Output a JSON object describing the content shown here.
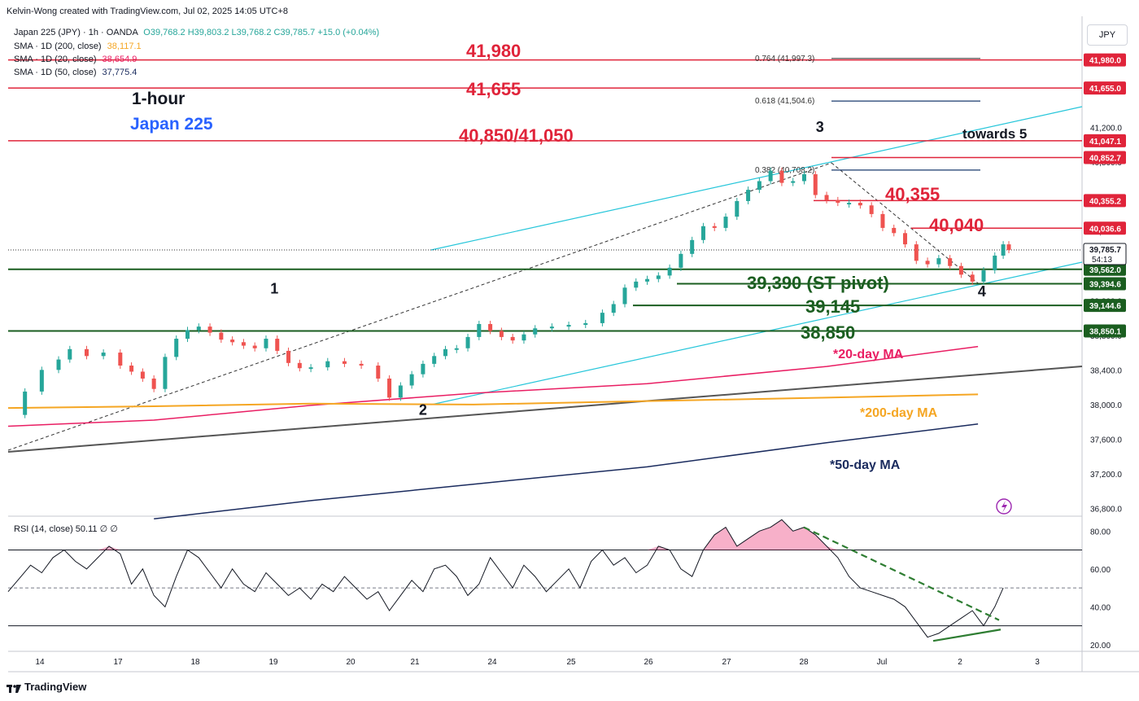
{
  "header": {
    "credit": "Kelvin-Wong created with TradingView.com, Jul 02, 2025 14:05 UTC+8",
    "symbol": "Japan 225 (JPY) · 1h · OANDA",
    "ohlc": "O39,768.2  H39,803.2  L39,768.2  C39,785.7  +15.0 (+0.04%)",
    "indicators": [
      {
        "label": "SMA · 1D (200, close)",
        "value": "38,117.1",
        "color": "#f5a623"
      },
      {
        "label": "SMA · 1D (20, close)",
        "value": "38,654.9",
        "color": "#e91e63"
      },
      {
        "label": "SMA · 1D (50, close)",
        "value": "37,775.4",
        "color": "#1a2b5e"
      }
    ],
    "currency": "JPY"
  },
  "branding": "TradingView",
  "rsi_legend": "RSI (14, close)  50.11  ∅  ∅",
  "colors": {
    "red": "#e0243a",
    "green_zone": "#1b5e20",
    "teal": "#26c6da",
    "ma20": "#e91e63",
    "ma200": "#f5a623",
    "ma50": "#1a2b5e",
    "trend": "#555555",
    "up": "#26a69a",
    "down": "#ef5350"
  },
  "chart_data": [
    {
      "type": "line",
      "title": "1-hour Japan 225",
      "title_line1": "1-hour",
      "title_line2": "Japan 225",
      "x_ticks": [
        "14",
        "17",
        "18",
        "19",
        "20",
        "21",
        "24",
        "25",
        "26",
        "27",
        "28",
        "Jul",
        "2",
        "3"
      ],
      "y_ticks": [
        "41,200.0",
        "40,800.0",
        "40,400.0",
        "40,000.0",
        "39,600.0",
        "39,200.0",
        "38,800.0",
        "38,400.0",
        "38,000.0",
        "37,600.0",
        "37,200.0",
        "36,800.0"
      ],
      "y_tick_values": [
        41200,
        40800,
        40400,
        40000,
        39600,
        39200,
        38800,
        38400,
        38000,
        37600,
        37200,
        36800
      ],
      "ylim": [
        36720,
        42390
      ],
      "price_path": [
        [
          13.9,
          37880
        ],
        [
          14.2,
          38150
        ],
        [
          14.5,
          38400
        ],
        [
          14.8,
          38520
        ],
        [
          15.0,
          38640
        ],
        [
          15.3,
          38560
        ],
        [
          15.6,
          38600
        ],
        [
          15.9,
          38450
        ],
        [
          16.1,
          38380
        ],
        [
          16.3,
          38300
        ],
        [
          16.5,
          38180
        ],
        [
          16.7,
          38550
        ],
        [
          16.9,
          38760
        ],
        [
          17.1,
          38860
        ],
        [
          17.3,
          38900
        ],
        [
          17.5,
          38830
        ],
        [
          17.7,
          38750
        ],
        [
          17.9,
          38720
        ],
        [
          18.1,
          38680
        ],
        [
          18.3,
          38650
        ],
        [
          18.5,
          38760
        ],
        [
          18.7,
          38620
        ],
        [
          18.9,
          38480
        ],
        [
          19.1,
          38420
        ],
        [
          19.3,
          38430
        ],
        [
          19.6,
          38500
        ],
        [
          19.9,
          38470
        ],
        [
          20.2,
          38450
        ],
        [
          20.5,
          38300
        ],
        [
          20.7,
          38080
        ],
        [
          20.9,
          38220
        ],
        [
          21.1,
          38350
        ],
        [
          21.3,
          38470
        ],
        [
          21.5,
          38560
        ],
        [
          21.7,
          38640
        ],
        [
          21.9,
          38650
        ],
        [
          22.1,
          38780
        ],
        [
          22.3,
          38930
        ],
        [
          22.5,
          38850
        ],
        [
          22.7,
          38780
        ],
        [
          22.9,
          38740
        ],
        [
          23.1,
          38810
        ],
        [
          23.3,
          38880
        ],
        [
          23.6,
          38900
        ],
        [
          23.9,
          38920
        ],
        [
          24.2,
          38940
        ],
        [
          24.5,
          39060
        ],
        [
          24.7,
          39160
        ],
        [
          24.9,
          39350
        ],
        [
          25.1,
          39420
        ],
        [
          25.3,
          39450
        ],
        [
          25.5,
          39490
        ],
        [
          25.7,
          39580
        ],
        [
          25.9,
          39740
        ],
        [
          26.1,
          39900
        ],
        [
          26.3,
          40060
        ],
        [
          26.5,
          40040
        ],
        [
          26.7,
          40170
        ],
        [
          26.9,
          40350
        ],
        [
          27.1,
          40480
        ],
        [
          27.3,
          40580
        ],
        [
          27.5,
          40700
        ],
        [
          27.7,
          40560
        ],
        [
          27.9,
          40580
        ],
        [
          28.1,
          40660
        ],
        [
          28.3,
          40420
        ],
        [
          28.5,
          40360
        ],
        [
          28.7,
          40330
        ],
        [
          28.9,
          40330
        ],
        [
          29.1,
          40300
        ],
        [
          29.3,
          40200
        ],
        [
          29.5,
          40040
        ],
        [
          29.7,
          39980
        ],
        [
          29.9,
          39850
        ],
        [
          30.1,
          39660
        ],
        [
          30.3,
          39620
        ],
        [
          30.5,
          39690
        ],
        [
          30.7,
          39600
        ],
        [
          30.9,
          39500
        ],
        [
          31.1,
          39420
        ],
        [
          31.3,
          39550
        ],
        [
          31.5,
          39720
        ],
        [
          31.65,
          39850
        ],
        [
          31.75,
          39785.7
        ]
      ],
      "moving_averages": [
        {
          "name": "20-day MA",
          "points": [
            [
              13.9,
              37750
            ],
            [
              16.5,
              37820
            ],
            [
              19.3,
              37990
            ],
            [
              22.2,
              38130
            ],
            [
              25.3,
              38240
            ],
            [
              28.5,
              38440
            ],
            [
              31.2,
              38670
            ]
          ]
        },
        {
          "name": "200-day MA",
          "points": [
            [
              13.9,
              37960
            ],
            [
              16.5,
              37980
            ],
            [
              19.3,
              38010
            ],
            [
              22.2,
              38000
            ],
            [
              25.3,
              38040
            ],
            [
              28.5,
              38080
            ],
            [
              31.2,
              38117
            ]
          ]
        },
        {
          "name": "50-day MA",
          "points": [
            [
              16.5,
              36680
            ],
            [
              19.3,
              36890
            ],
            [
              22.2,
              37080
            ],
            [
              25.3,
              37280
            ],
            [
              28.5,
              37560
            ],
            [
              31.2,
              37775
            ]
          ]
        }
      ],
      "horizontal_levels": [
        {
          "value": 41980,
          "label": "41,980",
          "axis_label": "41,980.0",
          "kind": "resistance"
        },
        {
          "value": 41655,
          "label": "41,655",
          "axis_label": "41,655.0",
          "kind": "resistance"
        },
        {
          "value": 41047.1,
          "label": "40,850/41,050",
          "axis_label": "41,047.1",
          "kind": "resistance"
        },
        {
          "value": 40852.7,
          "label": "",
          "axis_label": "40,852.7",
          "kind": "resistance"
        },
        {
          "value": 40355.2,
          "label": "40,355",
          "axis_label": "40,355.2",
          "kind": "resistance"
        },
        {
          "value": 40036.6,
          "label": "40,040",
          "axis_label": "40,036.6",
          "kind": "resistance"
        },
        {
          "value": 39562.0,
          "label": "",
          "axis_label": "39,562.0",
          "kind": "support"
        },
        {
          "value": 39394.6,
          "label": "39,390 (ST pivot)",
          "axis_label": "39,394.6",
          "kind": "support"
        },
        {
          "value": 39144.6,
          "label": "39,145",
          "axis_label": "39,144.6",
          "kind": "support"
        },
        {
          "value": 38850.1,
          "label": "38,850",
          "axis_label": "38,850.1",
          "kind": "support"
        }
      ],
      "last_price": {
        "value": 39785.7,
        "label": "39,785.7",
        "countdown": "54:13"
      },
      "fibonacci": [
        {
          "label": "0.764 (41,997.3)",
          "value": 41997.3
        },
        {
          "label": "0.618 (41,504.6)",
          "value": 41504.6
        },
        {
          "label": "0.382 (40,708.2)",
          "value": 40708.2
        }
      ],
      "wave_labels": [
        {
          "label": "1",
          "x": 18.65,
          "value": 39280
        },
        {
          "label": "2",
          "x": 21.3,
          "value": 37880
        },
        {
          "label": "3",
          "x": 28.38,
          "value": 41150
        },
        {
          "label": "4",
          "x": 31.27,
          "value": 39250
        }
      ],
      "annotations": [
        "towards 5",
        "*20-day MA",
        "*200-day MA",
        "*50-day MA"
      ]
    },
    {
      "type": "line",
      "title": "RSI (14, close)",
      "value": 50.11,
      "y_ticks": [
        "80.00",
        "60.00",
        "40.00",
        "20.00"
      ],
      "y_tick_values": [
        80,
        60,
        40,
        20
      ],
      "ylim": [
        16.5,
        87
      ],
      "bands": [
        30,
        70
      ],
      "x": [
        13.9,
        14.1,
        14.3,
        14.5,
        14.7,
        14.9,
        15.1,
        15.3,
        15.5,
        15.7,
        15.9,
        16.1,
        16.3,
        16.5,
        16.7,
        16.9,
        17.1,
        17.3,
        17.5,
        17.7,
        17.9,
        18.1,
        18.3,
        18.5,
        18.7,
        18.9,
        19.1,
        19.3,
        19.5,
        19.7,
        19.9,
        20.1,
        20.3,
        20.5,
        20.7,
        20.9,
        21.1,
        21.3,
        21.5,
        21.7,
        21.9,
        22.1,
        22.3,
        22.5,
        22.7,
        22.9,
        23.1,
        23.3,
        23.5,
        23.7,
        23.9,
        24.1,
        24.3,
        24.5,
        24.7,
        24.9,
        25.1,
        25.3,
        25.5,
        25.7,
        25.9,
        26.1,
        26.3,
        26.5,
        26.7,
        26.9,
        27.1,
        27.3,
        27.5,
        27.7,
        27.9,
        28.1,
        28.3,
        28.5,
        28.7,
        28.9,
        29.1,
        29.3,
        29.5,
        29.7,
        29.9,
        30.1,
        30.3,
        30.5,
        30.7,
        30.9,
        31.1,
        31.3,
        31.5,
        31.65
      ],
      "values": [
        48,
        55,
        62,
        58,
        66,
        70,
        64,
        60,
        66,
        72,
        68,
        52,
        60,
        46,
        40,
        56,
        70,
        66,
        58,
        50,
        60,
        52,
        48,
        58,
        52,
        46,
        50,
        44,
        52,
        48,
        56,
        50,
        44,
        48,
        38,
        46,
        54,
        48,
        60,
        62,
        56,
        46,
        52,
        66,
        58,
        50,
        62,
        56,
        48,
        54,
        60,
        50,
        64,
        70,
        62,
        66,
        58,
        62,
        72,
        70,
        60,
        56,
        70,
        78,
        82,
        72,
        76,
        80,
        82,
        86,
        80,
        82,
        78,
        72,
        66,
        56,
        50,
        48,
        46,
        44,
        40,
        32,
        24,
        26,
        30,
        34,
        38,
        30,
        40,
        50
      ],
      "divergence": {
        "price_trend": "lower lows",
        "rsi_trend": "higher lows"
      }
    }
  ]
}
